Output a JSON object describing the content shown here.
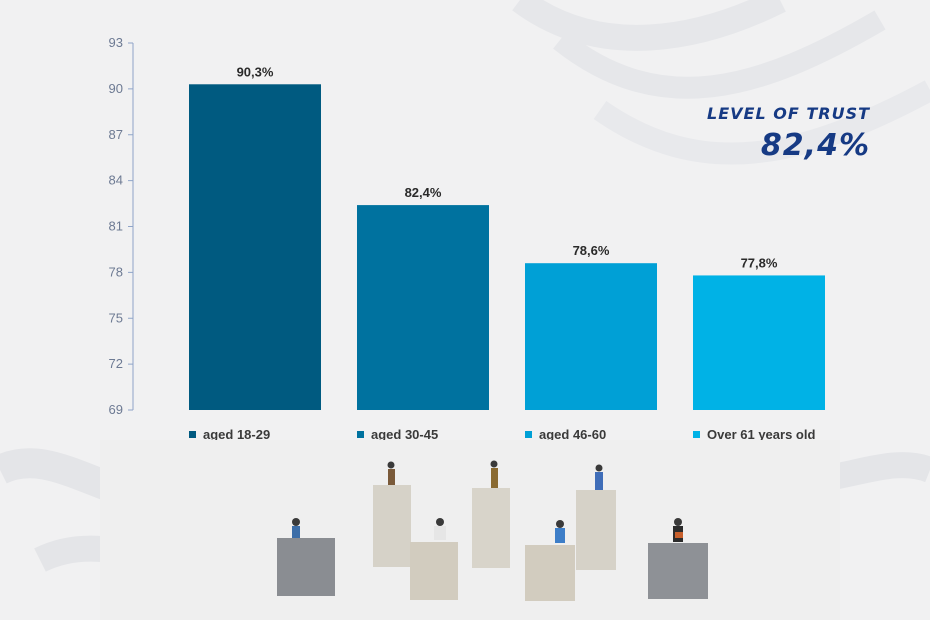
{
  "chart_data": {
    "type": "bar",
    "categories": [
      "aged 18-29",
      "aged 30-45",
      "aged 46-60",
      "Over 61 years old"
    ],
    "values": [
      90.3,
      82.4,
      78.6,
      77.8
    ],
    "data_labels": [
      "90,3%",
      "82,4%",
      "78,6%",
      "77,8%"
    ],
    "colors": [
      "#005a80",
      "#00729f",
      "#00a0d6",
      "#00b2e6"
    ],
    "ylim": [
      69,
      93
    ],
    "yticks": [
      69,
      72,
      75,
      78,
      81,
      84,
      87,
      90,
      93
    ],
    "legend_position": "bottom",
    "grid": false
  },
  "highlight": {
    "label": "LEVEL OF TRUST",
    "value": "82,4%",
    "color": "#163a84"
  },
  "photo": {
    "description_icon": "miniature-people-on-wooden-blocks"
  }
}
